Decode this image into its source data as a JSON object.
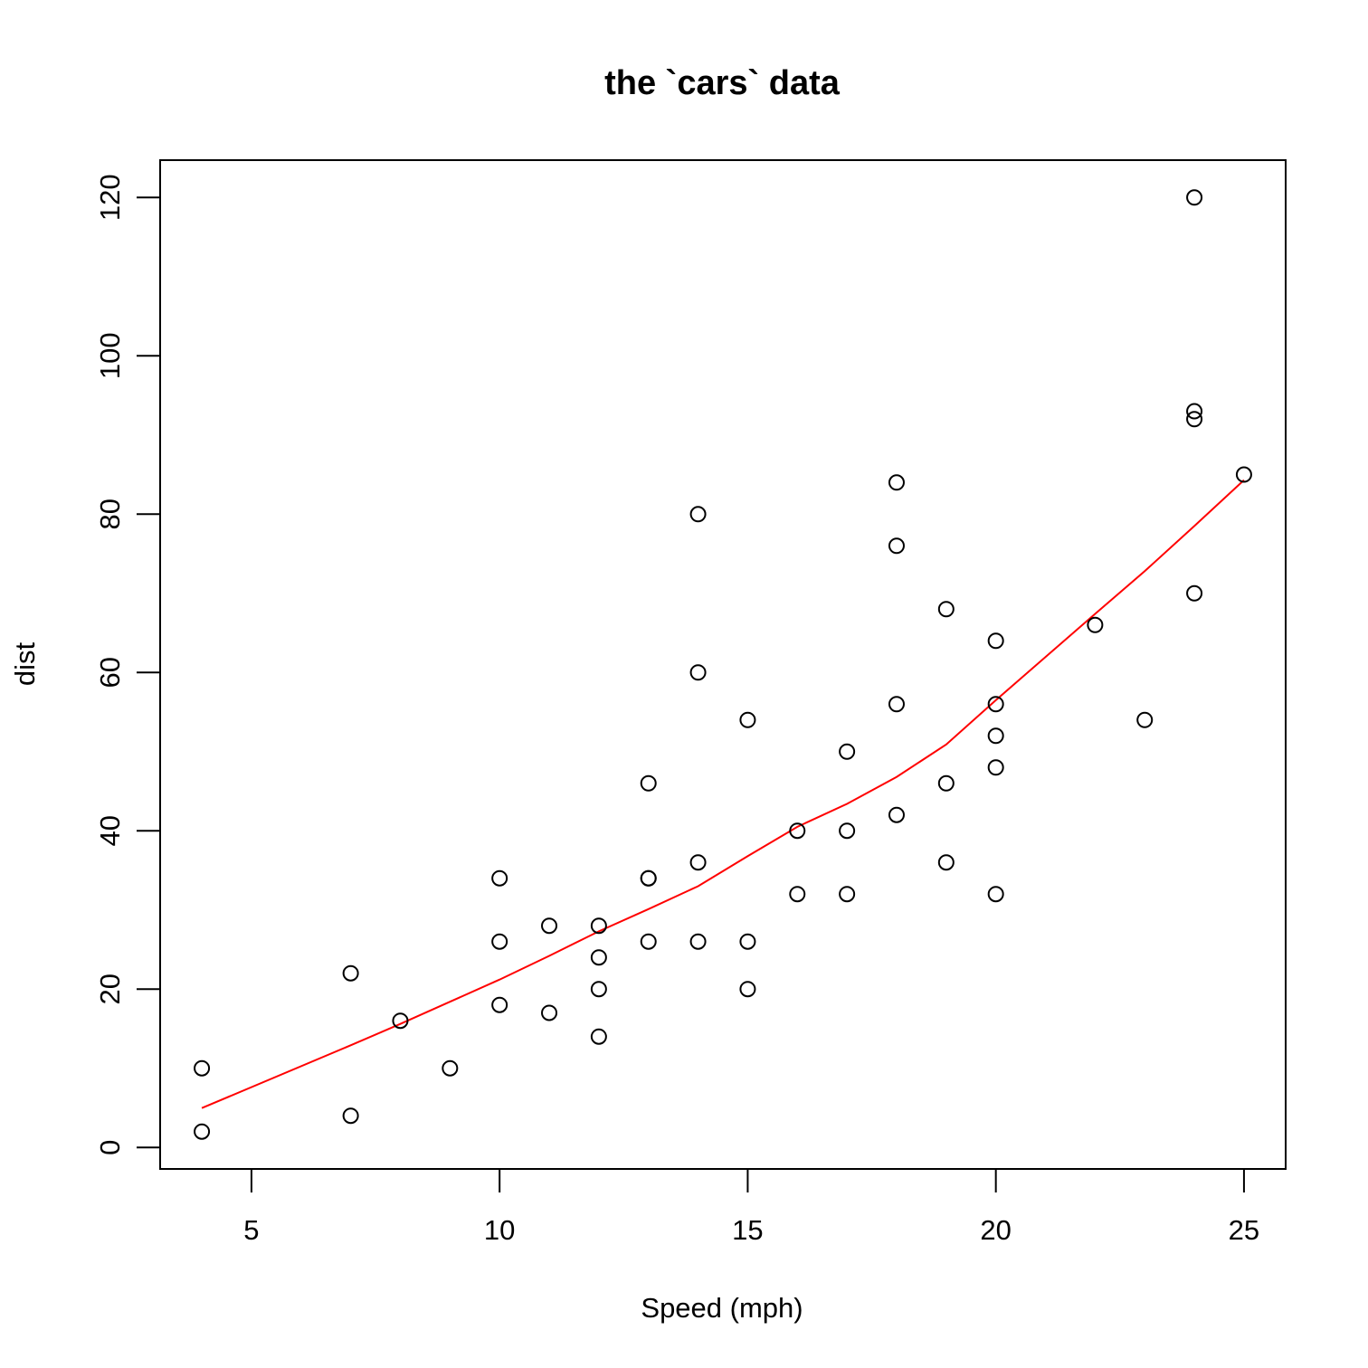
{
  "chart_data": {
    "type": "scatter",
    "title": "the `cars` data",
    "xlabel": "Speed (mph)",
    "ylabel": "dist",
    "xlim": [
      3.16,
      25.84
    ],
    "ylim": [
      -2.72,
      124.72
    ],
    "xticks": [
      5,
      10,
      15,
      20,
      25
    ],
    "yticks": [
      0,
      20,
      40,
      60,
      80,
      100,
      120
    ],
    "grid": false,
    "legend": "none",
    "colors": {
      "points": "#000000",
      "trend": "#ff0000",
      "frame": "#000000"
    },
    "series": [
      {
        "kind": "points",
        "x": [
          4,
          4,
          7,
          7,
          8,
          9,
          10,
          10,
          10,
          11,
          11,
          12,
          12,
          12,
          12,
          13,
          13,
          13,
          13,
          14,
          14,
          14,
          14,
          15,
          15,
          15,
          16,
          16,
          17,
          17,
          17,
          18,
          18,
          18,
          18,
          19,
          19,
          19,
          20,
          20,
          20,
          20,
          20,
          22,
          23,
          24,
          24,
          24,
          24,
          25
        ],
        "y": [
          2,
          10,
          4,
          22,
          16,
          10,
          18,
          26,
          34,
          17,
          28,
          14,
          20,
          24,
          28,
          26,
          34,
          34,
          46,
          26,
          36,
          60,
          80,
          20,
          26,
          54,
          32,
          40,
          32,
          40,
          50,
          42,
          56,
          76,
          84,
          36,
          46,
          68,
          32,
          48,
          52,
          56,
          64,
          66,
          54,
          70,
          92,
          93,
          120,
          85
        ]
      },
      {
        "kind": "line",
        "x": [
          4,
          7,
          8,
          9,
          10,
          11,
          12,
          13,
          14,
          15,
          16,
          17,
          18,
          19,
          20,
          22,
          23,
          24,
          25
        ],
        "y": [
          4.97,
          12.9,
          15.6,
          18.4,
          21.2,
          24.2,
          27.3,
          30.1,
          33.0,
          36.8,
          40.5,
          43.4,
          46.8,
          50.9,
          56.5,
          67.4,
          72.8,
          78.5,
          84.3
        ]
      }
    ]
  }
}
